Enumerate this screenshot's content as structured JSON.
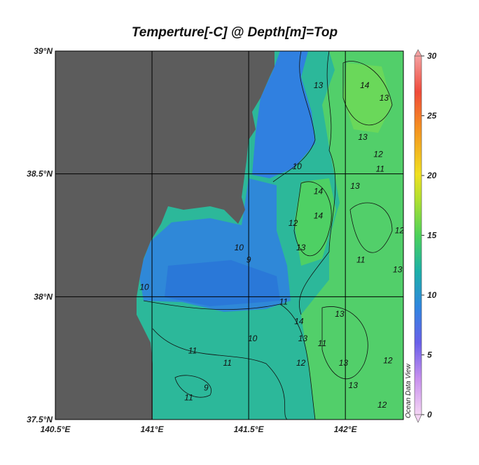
{
  "chart_data": {
    "type": "map",
    "title": "Temperture[-C] @ Depth[m]=Top",
    "watermark": "Ocean Data View",
    "xlim": [
      140.5,
      142.3
    ],
    "ylim": [
      37.5,
      39
    ],
    "xticks": [
      {
        "value": 140.5,
        "label": "140.5°E"
      },
      {
        "value": 141,
        "label": "141°E"
      },
      {
        "value": 141.5,
        "label": "141.5°E"
      },
      {
        "value": 142,
        "label": "142°E"
      }
    ],
    "yticks": [
      {
        "value": 37.5,
        "label": "37.5°N"
      },
      {
        "value": 38,
        "label": "38°N"
      },
      {
        "value": 38.5,
        "label": "38.5°N"
      },
      {
        "value": 39,
        "label": "39°N"
      }
    ],
    "grid": true,
    "colorbar": {
      "lim": [
        0,
        30
      ],
      "ticks": [
        0,
        5,
        10,
        15,
        20,
        25,
        30
      ]
    },
    "contour_labels": [
      {
        "lon": 142.1,
        "lat": 38.86,
        "value": 14
      },
      {
        "lon": 141.86,
        "lat": 38.86,
        "value": 13
      },
      {
        "lon": 142.2,
        "lat": 38.81,
        "value": 13
      },
      {
        "lon": 142.09,
        "lat": 38.65,
        "value": 13
      },
      {
        "lon": 142.17,
        "lat": 38.58,
        "value": 12
      },
      {
        "lon": 142.18,
        "lat": 38.52,
        "value": 11
      },
      {
        "lon": 141.75,
        "lat": 38.53,
        "value": 10
      },
      {
        "lon": 142.05,
        "lat": 38.45,
        "value": 13
      },
      {
        "lon": 141.86,
        "lat": 38.43,
        "value": 14
      },
      {
        "lon": 141.73,
        "lat": 38.3,
        "value": 12
      },
      {
        "lon": 141.86,
        "lat": 38.33,
        "value": 14
      },
      {
        "lon": 141.45,
        "lat": 38.2,
        "value": 10
      },
      {
        "lon": 141.5,
        "lat": 38.15,
        "value": 9
      },
      {
        "lon": 141.77,
        "lat": 38.2,
        "value": 13
      },
      {
        "lon": 142.08,
        "lat": 38.15,
        "value": 11
      },
      {
        "lon": 140.96,
        "lat": 38.04,
        "value": 10
      },
      {
        "lon": 141.68,
        "lat": 37.98,
        "value": 11
      },
      {
        "lon": 141.76,
        "lat": 37.9,
        "value": 14
      },
      {
        "lon": 141.97,
        "lat": 37.93,
        "value": 13
      },
      {
        "lon": 141.78,
        "lat": 37.83,
        "value": 13
      },
      {
        "lon": 141.88,
        "lat": 37.81,
        "value": 11
      },
      {
        "lon": 141.52,
        "lat": 37.83,
        "value": 10
      },
      {
        "lon": 141.21,
        "lat": 37.78,
        "value": 11
      },
      {
        "lon": 141.39,
        "lat": 37.73,
        "value": 11
      },
      {
        "lon": 141.77,
        "lat": 37.73,
        "value": 12
      },
      {
        "lon": 141.99,
        "lat": 37.73,
        "value": 13
      },
      {
        "lon": 142.22,
        "lat": 37.74,
        "value": 12
      },
      {
        "lon": 141.28,
        "lat": 37.63,
        "value": 9
      },
      {
        "lon": 141.19,
        "lat": 37.59,
        "value": 11
      },
      {
        "lon": 142.04,
        "lat": 37.64,
        "value": 13
      },
      {
        "lon": 142.19,
        "lat": 37.56,
        "value": 12
      },
      {
        "lon": 142.27,
        "lat": 38.11,
        "value": 13
      },
      {
        "lon": 142.28,
        "lat": 38.27,
        "value": 12
      }
    ]
  }
}
